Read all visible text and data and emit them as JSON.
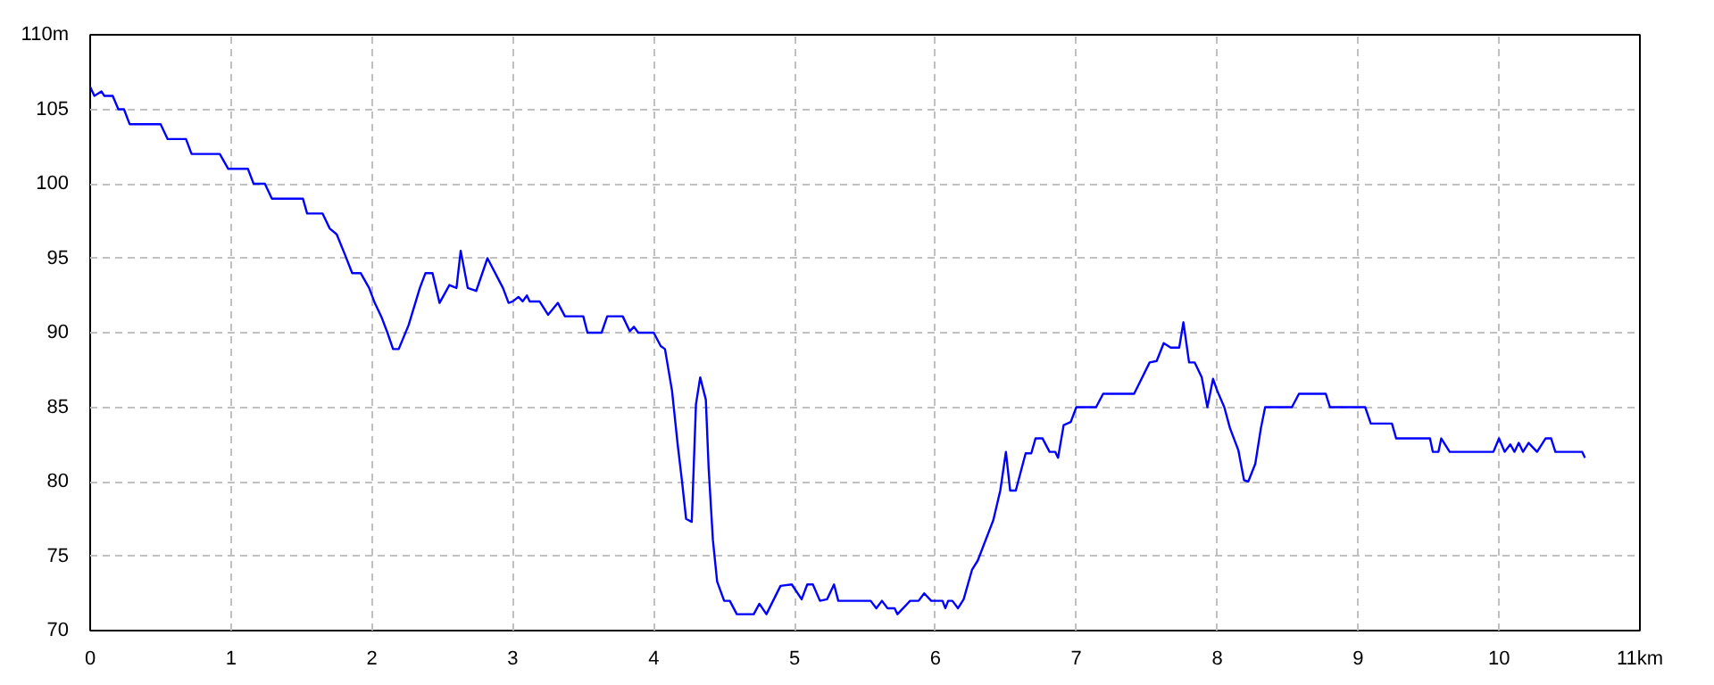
{
  "chart_data": {
    "type": "line",
    "xlim": [
      0,
      11
    ],
    "ylim": [
      70,
      110
    ],
    "xticks": [
      0,
      1,
      2,
      3,
      4,
      5,
      6,
      7,
      8,
      9,
      10,
      {
        "value": 11,
        "label": "11km"
      }
    ],
    "yticks": [
      70,
      75,
      80,
      85,
      90,
      95,
      100,
      105,
      {
        "value": 110,
        "label": "110m"
      }
    ],
    "grid": true,
    "marker": "none",
    "line_style": "solid",
    "series": [
      {
        "color": "#0000ff",
        "x": [
          0,
          0.03,
          0.08,
          0.1,
          0.16,
          0.2,
          0.24,
          0.28,
          0.5,
          0.55,
          0.68,
          0.72,
          0.92,
          0.98,
          1.12,
          1.16,
          1.24,
          1.29,
          1.51,
          1.54,
          1.65,
          1.7,
          1.75,
          1.81,
          1.86,
          1.92,
          1.98,
          2.02,
          2.07,
          2.11,
          2.15,
          2.19,
          2.26,
          2.34,
          2.38,
          2.43,
          2.48,
          2.55,
          2.6,
          2.63,
          2.68,
          2.74,
          2.82,
          2.93,
          2.97,
          3.0,
          3.04,
          3.07,
          3.1,
          3.12,
          3.19,
          3.25,
          3.32,
          3.37,
          3.5,
          3.53,
          3.63,
          3.67,
          3.78,
          3.83,
          3.86,
          3.89,
          4.0,
          4.05,
          4.08,
          4.13,
          4.17,
          4.2,
          4.23,
          4.27,
          4.3,
          4.33,
          4.37,
          4.39,
          4.42,
          4.45,
          4.5,
          4.54,
          4.59,
          4.71,
          4.75,
          4.8,
          4.9,
          4.98,
          5.05,
          5.09,
          5.13,
          5.18,
          5.23,
          5.28,
          5.31,
          5.45,
          5.54,
          5.58,
          5.62,
          5.66,
          5.71,
          5.73,
          5.82,
          5.88,
          5.92,
          5.97,
          6.05,
          6.07,
          6.09,
          6.12,
          6.16,
          6.2,
          6.26,
          6.3,
          6.41,
          6.46,
          6.5,
          6.53,
          6.57,
          6.64,
          6.68,
          6.71,
          6.76,
          6.81,
          6.85,
          6.87,
          6.91,
          6.96,
          7.0,
          7.14,
          7.19,
          7.41,
          7.52,
          7.57,
          7.62,
          7.67,
          7.73,
          7.76,
          7.8,
          7.84,
          7.89,
          7.93,
          7.97,
          8.0,
          8.05,
          8.09,
          8.15,
          8.19,
          8.22,
          8.27,
          8.31,
          8.34,
          8.53,
          8.58,
          8.77,
          8.8,
          9.05,
          9.09,
          9.24,
          9.27,
          9.51,
          9.53,
          9.57,
          9.59,
          9.65,
          9.96,
          10.0,
          10.04,
          10.08,
          10.11,
          10.14,
          10.17,
          10.21,
          10.27,
          10.33,
          10.37,
          10.4,
          10.59,
          10.61
        ],
        "values": [
          106.5,
          105.9,
          106.2,
          105.9,
          105.9,
          105,
          105,
          104,
          104,
          103,
          103,
          102,
          102,
          101,
          101,
          100,
          100,
          99,
          99,
          98,
          98,
          97,
          96.6,
          95.2,
          94,
          94,
          93,
          92,
          91,
          90,
          88.9,
          88.9,
          90.5,
          93,
          94,
          94,
          92,
          93.2,
          93,
          95.5,
          93,
          92.8,
          95,
          93,
          92,
          92.1,
          92.4,
          92.1,
          92.5,
          92.1,
          92.1,
          91.2,
          92,
          91.1,
          91.1,
          90,
          90,
          91.1,
          91.1,
          90.1,
          90.4,
          90,
          90,
          89.1,
          88.9,
          86.1,
          82.5,
          80.1,
          77.5,
          77.3,
          85.2,
          87,
          85.5,
          80.9,
          76.1,
          73.3,
          72,
          72,
          71.1,
          71.1,
          71.8,
          71.1,
          73,
          73.1,
          72.1,
          73.1,
          73.1,
          72,
          72.1,
          73.1,
          72,
          72,
          72,
          71.5,
          72,
          71.5,
          71.5,
          71.1,
          72,
          72,
          72.5,
          72,
          72,
          71.5,
          72,
          72,
          71.5,
          72.1,
          74.1,
          74.7,
          77.4,
          79.4,
          82,
          79.4,
          79.4,
          81.9,
          81.9,
          82.9,
          82.9,
          82,
          82,
          81.6,
          83.8,
          84,
          85,
          85,
          85.9,
          85.9,
          88,
          88.1,
          89.3,
          89,
          89,
          90.7,
          88,
          88,
          87,
          85,
          86.9,
          86.1,
          85,
          83.6,
          82.1,
          80.1,
          80,
          81.2,
          83.6,
          85,
          85,
          85.9,
          85.9,
          85,
          85,
          83.9,
          83.9,
          82.9,
          82.9,
          82,
          82,
          82.9,
          82,
          82,
          82.9,
          82,
          82.5,
          82,
          82.6,
          82,
          82.6,
          82,
          82.9,
          82.9,
          82,
          82,
          81.6
        ]
      }
    ]
  }
}
